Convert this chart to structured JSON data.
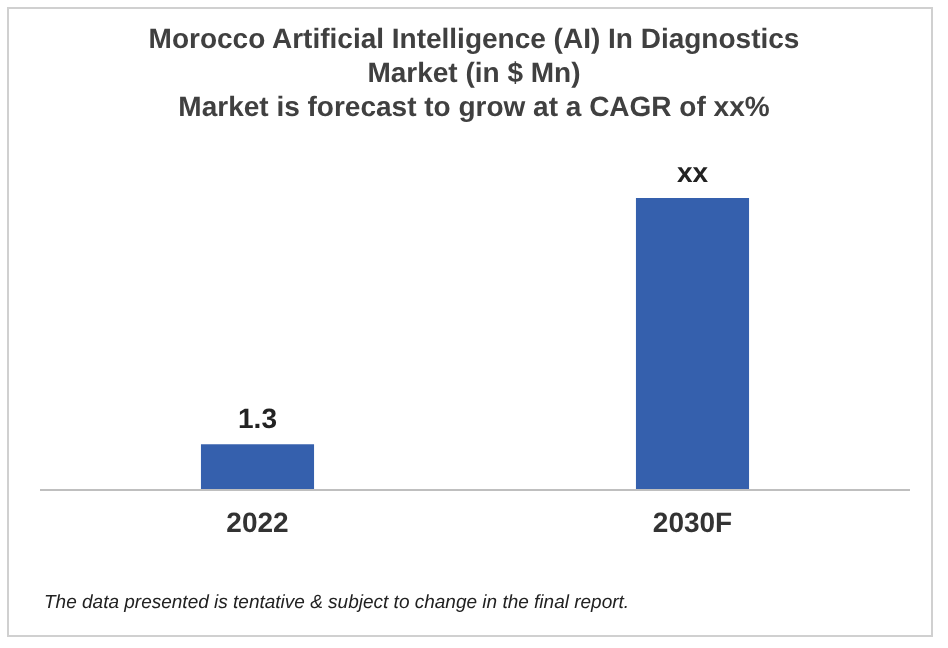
{
  "chart_data": {
    "type": "bar",
    "title": "Morocco Artificial Intelligence (AI) In Diagnostics Market (in $ Mn)",
    "subtitle": "Market is forecast to grow at a CAGR of xx%",
    "categories": [
      "2022",
      "2030F"
    ],
    "values": [
      1.3,
      8.3
    ],
    "value_labels": [
      "1.3",
      "xx"
    ],
    "color": "#3560ad",
    "annotations": [
      "The data presented is tentative & subject to change in the final report."
    ]
  }
}
